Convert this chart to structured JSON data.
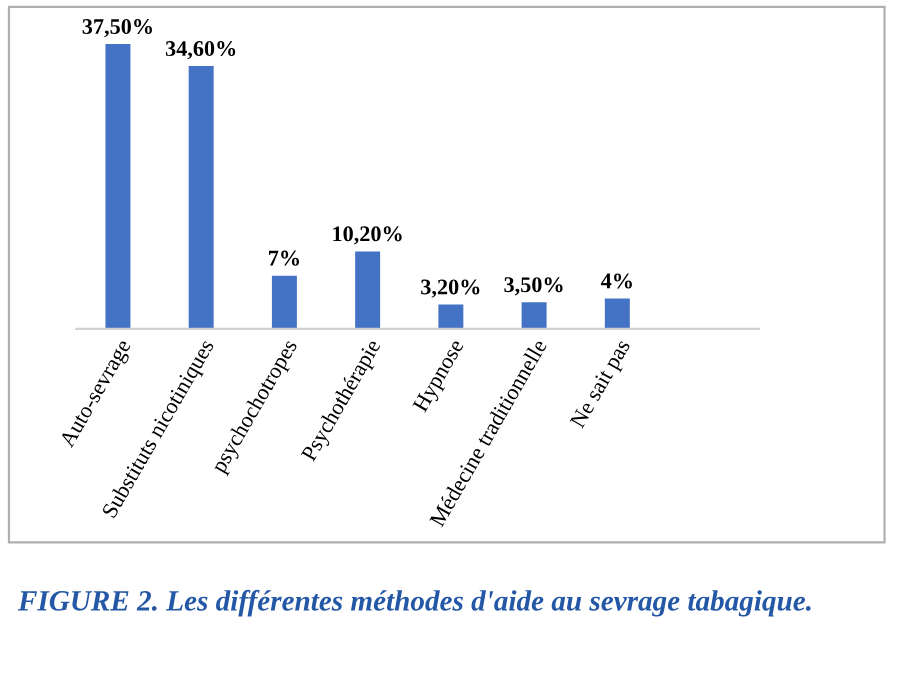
{
  "chart_data": {
    "type": "bar",
    "categories": [
      "Auto-sevrage",
      "Substituts nicotiniques",
      "psychochotropes",
      "Psychothérapie",
      "Hypnose",
      "Médecine traditionnelle",
      "Ne sait pas"
    ],
    "values": [
      37.5,
      34.6,
      7,
      10.2,
      3.2,
      3.5,
      4
    ],
    "value_labels": [
      "37,50%",
      "34,60%",
      "7%",
      "10,20%",
      "3,20%",
      "3,50%",
      "4%"
    ],
    "color": "#4472c4",
    "grid": false,
    "legend": false,
    "annotations": [
      "FIGURE 2. Les différentes méthodes d'aide au sevrage tabagique."
    ]
  }
}
